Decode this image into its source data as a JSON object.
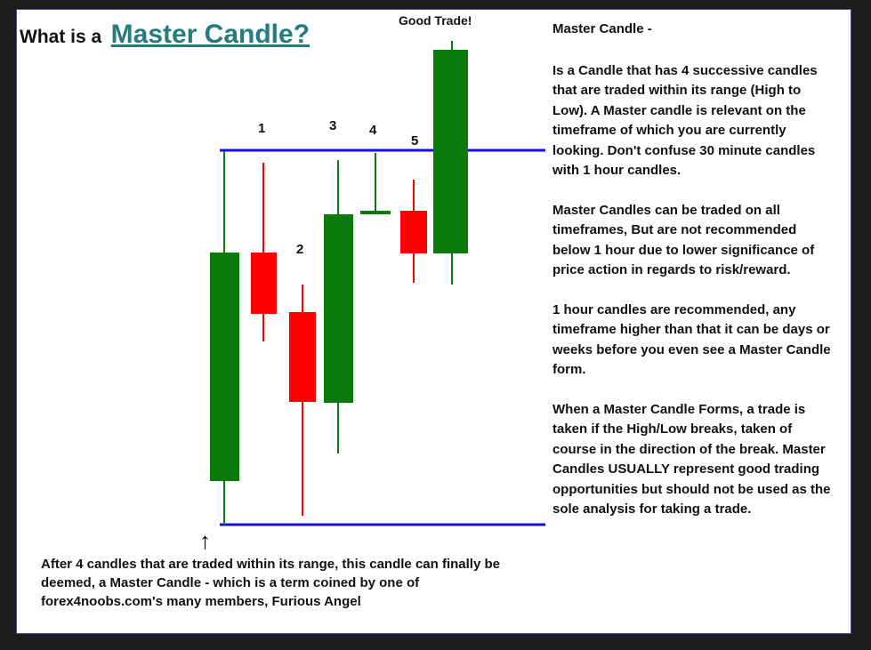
{
  "title": {
    "prefix": "What is a",
    "highlight": "Master Candle?"
  },
  "annotation": "Good Trade!",
  "candle_labels": [
    "1",
    "2",
    "3",
    "4",
    "5"
  ],
  "bottom_text": "After 4 candles that are traded within its range, this candle can finally be deemed, a Master Candle - which is a term coined by one of forex4noobs.com's many members, Furious Angel",
  "side": {
    "heading": "Master Candle -",
    "paragraphs": [
      "Is a Candle that has 4 successive candles that are traded within its range (High to Low). A Master candle is relevant on the timeframe of which you are currently looking. Don't confuse 30 minute candles with 1 hour candles.",
      "Master Candles can be traded on all timeframes, But are not recommended below 1 hour due to lower significance of price action in regards to risk/reward.",
      "1 hour candles are recommended, any timeframe higher than that it can be days or weeks before you even see a Master Candle form.",
      "When a Master Candle Forms, a trade is taken if the High/Low breaks, taken of course in the direction of the break. Master Candles USUALLY represent good trading opportunities but should not be used as the sole analysis for taking a trade."
    ]
  },
  "colors": {
    "bull": "#0a7a0a",
    "bear": "#ff0000",
    "range_line": "#1010e0",
    "title_accent": "#237d7d"
  }
}
